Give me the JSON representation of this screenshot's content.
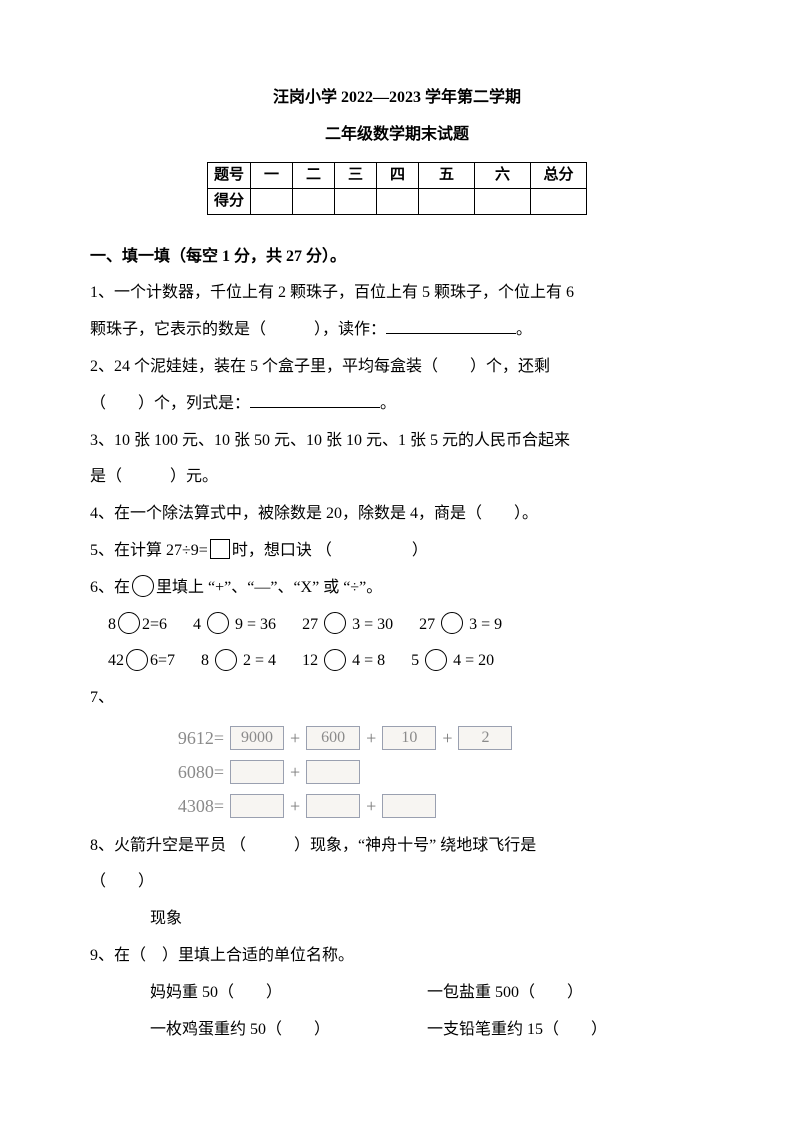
{
  "title": {
    "line1": "汪岗小学 2022—2023 学年第二学期",
    "line2": "二年级数学期末试题"
  },
  "score_table": {
    "row1": [
      "题号",
      "一",
      "二",
      "三",
      "四",
      "五",
      "六",
      "总分"
    ],
    "row2_label": "得分"
  },
  "section1_heading": "一、填一填（每空 1 分，共 27 分）。",
  "q1a": "1、一个计数器，千位上有 2 颗珠子，百位上有 5 颗珠子，个位上有 6",
  "q1b_pre": "颗珠子，它表示的数是（　　　），读作：",
  "q1b_post": "。",
  "q2a": "2、24 个泥娃娃，装在 5 个盒子里，平均每盒装（　　）个，还剩",
  "q2b_pre": "（　　）个，列式是：",
  "q2b_post": "。",
  "q3a": "3、10 张 100 元、10 张 50 元、10 张 10 元、1 张 5 元的人民币合起来",
  "q3b": "是（　　　）元。",
  "q4": "4、在一个除法算式中，被除数是 20，除数是 4，商是（　　）。",
  "q5_pre": "5、在计算 27÷9=",
  "q5_post": "时，想口诀 （　　　　　）",
  "q6_head_pre": "6、在",
  "q6_head_post": "里填上 “+”、“—”、“X” 或 “÷”。",
  "q6_row1": [
    {
      "l": "8",
      "r": "2=6"
    },
    {
      "l": "4",
      "r": "9 = 36"
    },
    {
      "l": "27",
      "r": "3 = 30"
    },
    {
      "l": "27",
      "r": "3 = 9"
    }
  ],
  "q6_row2": [
    {
      "l": "42",
      "r": "6=7"
    },
    {
      "l": "8",
      "r": "2 = 4"
    },
    {
      "l": "12",
      "r": "4 = 8"
    },
    {
      "l": "5",
      "r": "4 = 20"
    }
  ],
  "q7_label": "7、",
  "q7": {
    "line1": {
      "num": "9612=",
      "boxes": [
        "9000",
        "600",
        "10",
        "2"
      ]
    },
    "line2": {
      "num": "6080=",
      "boxes": [
        "",
        ""
      ]
    },
    "line3": {
      "num": "4308=",
      "boxes": [
        "",
        "",
        ""
      ]
    }
  },
  "q8a": "8、火箭升空是平员 （　　　）现象，“神舟十号” 绕地球飞行是",
  "q8b": "（　　）",
  "q8c": "现象",
  "q9_head": "9、在（　）里填上合适的单位名称。",
  "q9_items": {
    "a": "妈妈重 50（　　）",
    "b": "一包盐重 500（　　）",
    "c": "一枚鸡蛋重约 50（　　）",
    "d": "一支铅笔重约 15（　　）"
  }
}
